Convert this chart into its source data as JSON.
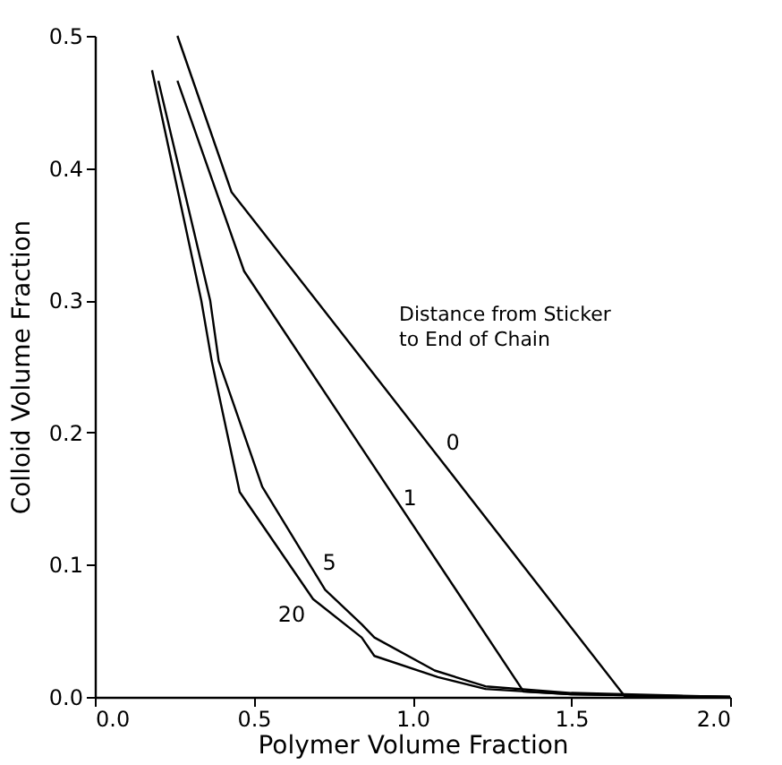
{
  "chart_data": {
    "type": "line",
    "xlabel": "Polymer Volume Fraction",
    "ylabel": "Colloid Volume Fraction",
    "xlim": [
      0,
      2
    ],
    "ylim": [
      0,
      0.5
    ],
    "xticks": [
      {
        "value": 0,
        "label": "0.0"
      },
      0.5,
      {
        "value": 1,
        "label": "1.0"
      },
      1.5,
      {
        "value": 2,
        "label": "2.0"
      }
    ],
    "yticks": [
      {
        "value": 0,
        "label": "0.0"
      },
      {
        "value": 0.1,
        "label": "0.1"
      },
      {
        "value": 0.2,
        "label": "0.2"
      },
      {
        "value": 0.3,
        "label": "0.3"
      },
      {
        "value": 0.4,
        "label": "0.4"
      },
      {
        "value": 0.5,
        "label": "0.5"
      }
    ],
    "grid": false,
    "legend": false,
    "marker": "none",
    "line_style": "solid",
    "series": [
      {
        "name": "0",
        "color": "#000000",
        "x": [
          0.26,
          0.43,
          0.84,
          1.67,
          2.0
        ],
        "values": [
          0.5,
          0.382,
          0.256,
          0,
          0
        ]
      },
      {
        "name": "1",
        "color": "#000000",
        "x": [
          0.26,
          0.47,
          1.35,
          1.5,
          2.0
        ],
        "values": [
          0.466,
          0.322,
          0.004,
          0.002,
          0
        ]
      },
      {
        "name": "5",
        "color": "#000000",
        "x": [
          0.2,
          0.363,
          0.39,
          0.527,
          0.725,
          0.84,
          0.88,
          1.07,
          1.23,
          1.5,
          2.0
        ],
        "values": [
          0.466,
          0.3,
          0.254,
          0.159,
          0.081,
          0.055,
          0.045,
          0.02,
          0.008,
          0.003,
          0
        ]
      },
      {
        "name": "20",
        "color": "#000000",
        "x": [
          0.18,
          0.335,
          0.368,
          0.456,
          0.687,
          0.84,
          0.88,
          1.08,
          1.23,
          1.5,
          2.0
        ],
        "values": [
          0.474,
          0.3,
          0.254,
          0.155,
          0.074,
          0.045,
          0.031,
          0.015,
          0.006,
          0.002,
          0
        ]
      }
    ],
    "annotations": [
      "Distance from Sticker to End of Chain"
    ]
  }
}
